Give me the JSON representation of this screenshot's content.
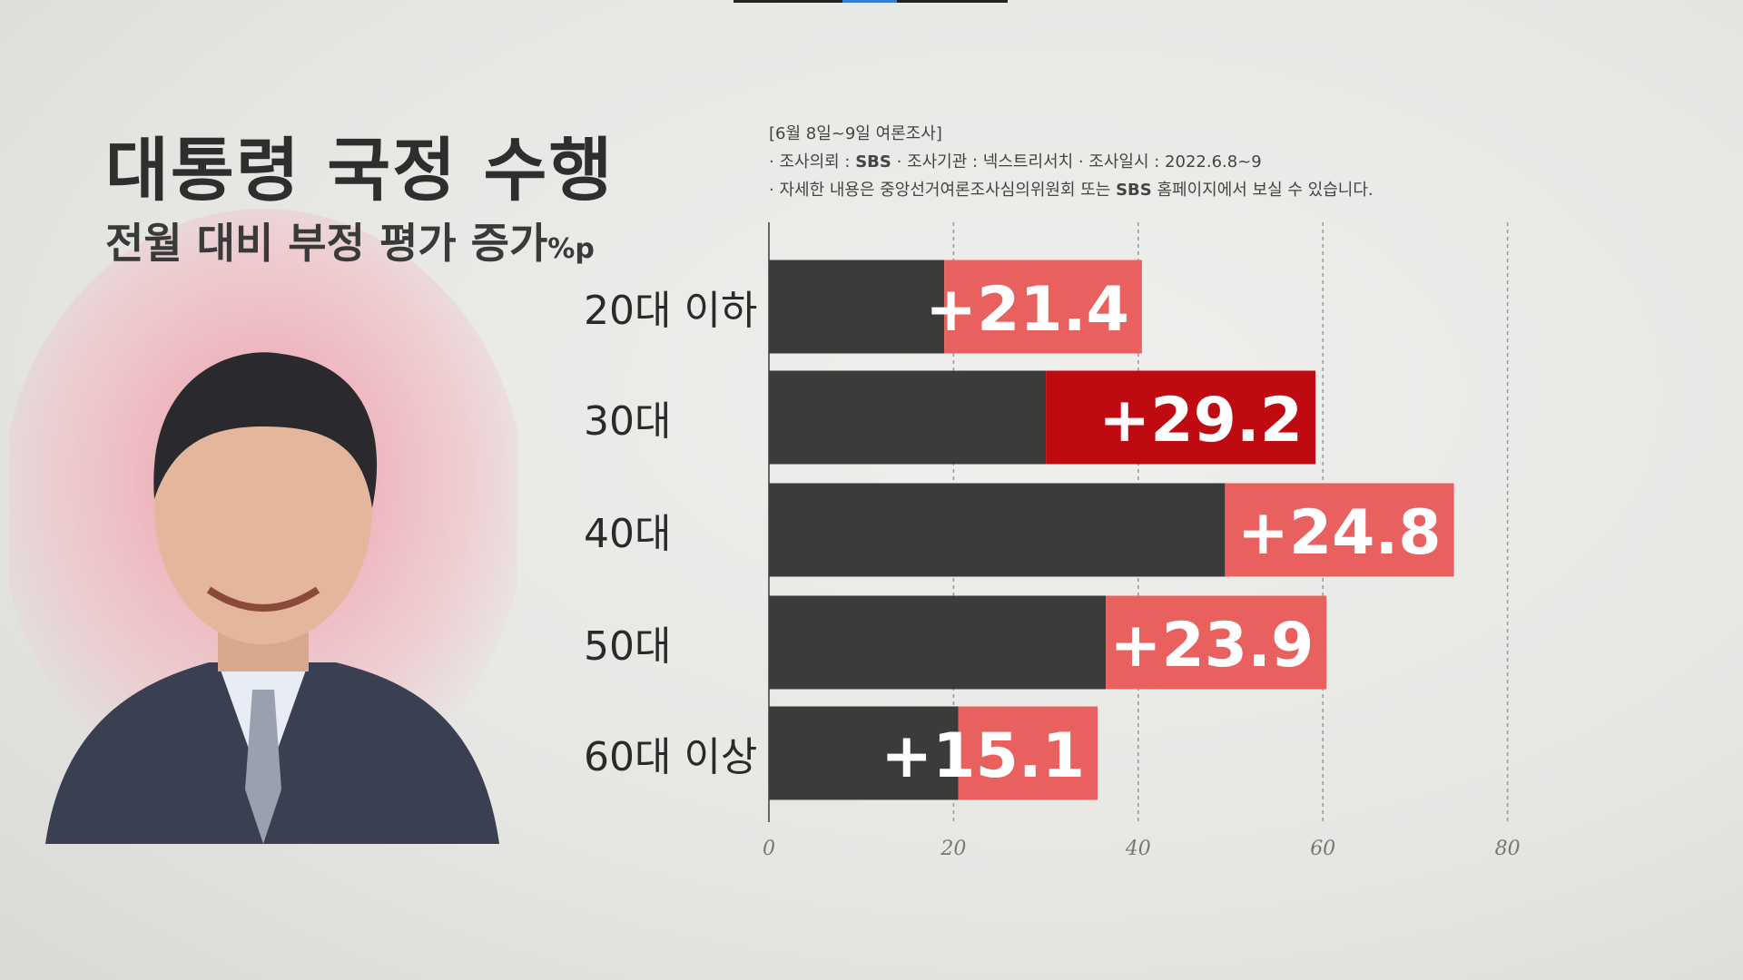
{
  "title": "대통령 국정 수행",
  "subtitle": "전월 대비 부정 평가 증가",
  "subtitle_unit": "%p",
  "notes": {
    "line1": "[6월 8일~9일 여론조사]",
    "line2_a": "· 조사의뢰 : ",
    "line2_b": "SBS",
    "line2_c": " · 조사기관 : 넥스트리서치  · 조사일시 : 2022.6.8~9",
    "line3_a": "· 자세한 내용은 중앙선거여론조사심의위원회 또는 ",
    "line3_b": "SBS",
    "line3_c": " 홈페이지에서 보실 수 있습니다."
  },
  "chart_data": {
    "type": "bar",
    "orientation": "horizontal",
    "stacked": true,
    "categories": [
      "20대 이하",
      "30대",
      "40대",
      "50대",
      "60대 이상"
    ],
    "series": [
      {
        "values": [
          19.0,
          30.0,
          49.4,
          36.5,
          20.5
        ],
        "color": "#3b3b3b"
      },
      {
        "values": [
          21.4,
          29.2,
          24.8,
          23.9,
          15.1
        ],
        "color": "#e8615f"
      }
    ],
    "data_labels": [
      "+21.4",
      "+29.2",
      "+24.8",
      "+23.9",
      "+15.1"
    ],
    "highlight_index": 1,
    "highlight_color": "#c00a12",
    "xlim": [
      0,
      80
    ],
    "xticks": [
      "0",
      "20",
      "40",
      "60",
      "80"
    ],
    "grid": true
  }
}
